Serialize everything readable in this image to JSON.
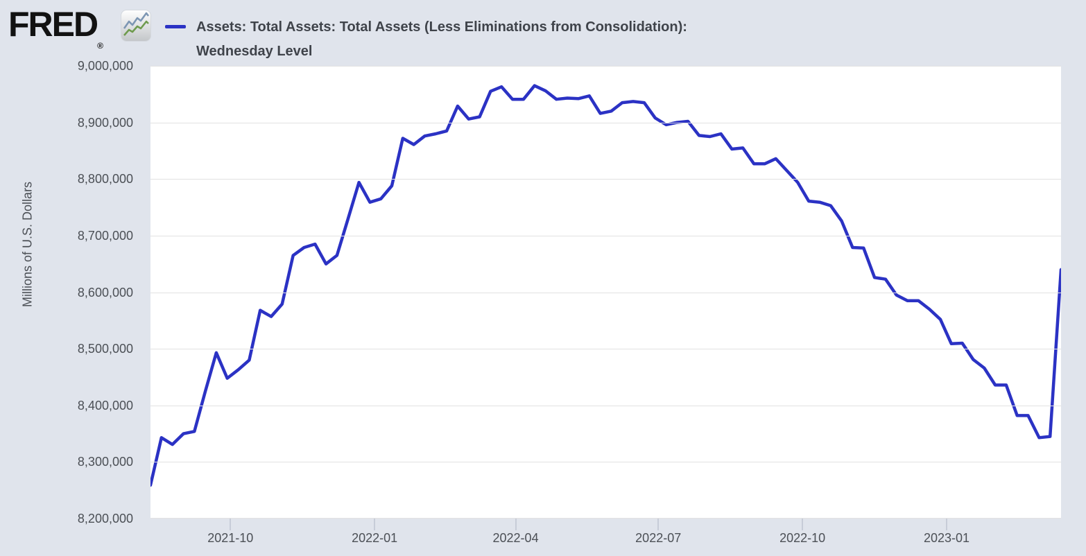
{
  "header": {
    "brand": "FRED",
    "registered_mark": "®",
    "series_title_line1": "Assets: Total Assets: Total Assets (Less Eliminations from Consolidation):",
    "series_title_line2": "Wednesday Level"
  },
  "colors": {
    "background": "#e0e4ec",
    "plot_background": "#ffffff",
    "gridline": "#e2e2e2",
    "line": "#2b32c4",
    "tick_text": "#4b4f55",
    "tick_mark": "#c7ccd8",
    "title_text": "#3f434a",
    "brand_text": "#121212"
  },
  "y_axis": {
    "label": "Millions of U.S. Dollars",
    "ticks": [
      {
        "value": 9000000,
        "label": "9,000,000"
      },
      {
        "value": 8900000,
        "label": "8,900,000"
      },
      {
        "value": 8800000,
        "label": "8,800,000"
      },
      {
        "value": 8700000,
        "label": "8,700,000"
      },
      {
        "value": 8600000,
        "label": "8,600,000"
      },
      {
        "value": 8500000,
        "label": "8,500,000"
      },
      {
        "value": 8400000,
        "label": "8,400,000"
      },
      {
        "value": 8300000,
        "label": "8,300,000"
      },
      {
        "value": 8200000,
        "label": "8,200,000"
      }
    ]
  },
  "x_axis": {
    "ticks": [
      {
        "date": "2021-10-01",
        "label": "2021-10"
      },
      {
        "date": "2022-01-01",
        "label": "2022-01"
      },
      {
        "date": "2022-04-01",
        "label": "2022-04"
      },
      {
        "date": "2022-07-01",
        "label": "2022-07"
      },
      {
        "date": "2022-10-01",
        "label": "2022-10"
      },
      {
        "date": "2023-01-01",
        "label": "2023-01"
      }
    ]
  },
  "chart_data": {
    "type": "line",
    "title": "Assets: Total Assets: Total Assets (Less Eliminations from Consolidation): Wednesday Level",
    "xlabel": "",
    "ylabel": "Millions of U.S. Dollars",
    "ylim": [
      8200000,
      9000000
    ],
    "x_range": [
      "2021-08-11",
      "2023-03-15"
    ],
    "grid": "horizontal",
    "legend_position": "top-left",
    "frequency": "weekly-wednesday",
    "series": [
      {
        "name": "Assets: Total Assets: Total Assets (Less Eliminations from Consolidation): Wednesday Level",
        "color": "#2b32c4",
        "points": [
          [
            "2021-08-11",
            8259000
          ],
          [
            "2021-08-18",
            8343000
          ],
          [
            "2021-08-25",
            8331000
          ],
          [
            "2021-09-01",
            8350000
          ],
          [
            "2021-09-08",
            8354000
          ],
          [
            "2021-09-15",
            8425000
          ],
          [
            "2021-09-22",
            8493000
          ],
          [
            "2021-09-29",
            8448000
          ],
          [
            "2021-10-06",
            8463000
          ],
          [
            "2021-10-13",
            8480000
          ],
          [
            "2021-10-20",
            8568000
          ],
          [
            "2021-10-27",
            8557000
          ],
          [
            "2021-11-03",
            8579000
          ],
          [
            "2021-11-10",
            8665000
          ],
          [
            "2021-11-17",
            8679000
          ],
          [
            "2021-11-24",
            8685000
          ],
          [
            "2021-12-01",
            8650000
          ],
          [
            "2021-12-08",
            8665000
          ],
          [
            "2021-12-15",
            8729000
          ],
          [
            "2021-12-22",
            8794000
          ],
          [
            "2021-12-29",
            8759000
          ],
          [
            "2022-01-05",
            8765000
          ],
          [
            "2022-01-12",
            8788000
          ],
          [
            "2022-01-19",
            8872000
          ],
          [
            "2022-01-26",
            8861000
          ],
          [
            "2022-02-02",
            8876000
          ],
          [
            "2022-02-09",
            8880000
          ],
          [
            "2022-02-16",
            8885000
          ],
          [
            "2022-02-23",
            8929000
          ],
          [
            "2022-03-02",
            8906000
          ],
          [
            "2022-03-09",
            8910000
          ],
          [
            "2022-03-16",
            8955000
          ],
          [
            "2022-03-23",
            8963000
          ],
          [
            "2022-03-30",
            8941000
          ],
          [
            "2022-04-06",
            8941000
          ],
          [
            "2022-04-13",
            8965000
          ],
          [
            "2022-04-20",
            8956000
          ],
          [
            "2022-04-27",
            8941000
          ],
          [
            "2022-05-04",
            8943000
          ],
          [
            "2022-05-11",
            8942000
          ],
          [
            "2022-05-18",
            8947000
          ],
          [
            "2022-05-25",
            8916000
          ],
          [
            "2022-06-01",
            8920000
          ],
          [
            "2022-06-08",
            8935000
          ],
          [
            "2022-06-15",
            8937000
          ],
          [
            "2022-06-22",
            8935000
          ],
          [
            "2022-06-29",
            8908000
          ],
          [
            "2022-07-06",
            8896000
          ],
          [
            "2022-07-13",
            8900000
          ],
          [
            "2022-07-20",
            8902000
          ],
          [
            "2022-07-27",
            8877000
          ],
          [
            "2022-08-03",
            8875000
          ],
          [
            "2022-08-10",
            8880000
          ],
          [
            "2022-08-17",
            8853000
          ],
          [
            "2022-08-24",
            8855000
          ],
          [
            "2022-08-31",
            8827000
          ],
          [
            "2022-09-07",
            8827000
          ],
          [
            "2022-09-14",
            8836000
          ],
          [
            "2022-09-21",
            8815000
          ],
          [
            "2022-09-28",
            8794000
          ],
          [
            "2022-10-05",
            8761000
          ],
          [
            "2022-10-12",
            8759000
          ],
          [
            "2022-10-19",
            8753000
          ],
          [
            "2022-10-26",
            8726000
          ],
          [
            "2022-11-02",
            8679000
          ],
          [
            "2022-11-09",
            8678000
          ],
          [
            "2022-11-16",
            8626000
          ],
          [
            "2022-11-23",
            8623000
          ],
          [
            "2022-11-30",
            8595000
          ],
          [
            "2022-12-07",
            8585000
          ],
          [
            "2022-12-14",
            8585000
          ],
          [
            "2022-12-21",
            8570000
          ],
          [
            "2022-12-28",
            8552000
          ],
          [
            "2023-01-04",
            8509000
          ],
          [
            "2023-01-11",
            8510000
          ],
          [
            "2023-01-18",
            8481000
          ],
          [
            "2023-01-25",
            8466000
          ],
          [
            "2023-02-01",
            8436000
          ],
          [
            "2023-02-08",
            8436000
          ],
          [
            "2023-02-15",
            8382000
          ],
          [
            "2023-02-22",
            8382000
          ],
          [
            "2023-03-01",
            8343000
          ],
          [
            "2023-03-08",
            8345000
          ],
          [
            "2023-03-15",
            8640000
          ]
        ]
      }
    ]
  }
}
